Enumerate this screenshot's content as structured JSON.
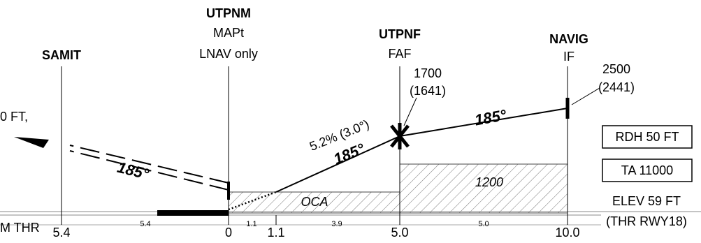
{
  "fixes": [
    {
      "name": "SAMIT",
      "distance": "5.4"
    },
    {
      "name": "UTPNM",
      "role": "MAPt",
      "note": "LNAV only",
      "distance": "0"
    },
    {
      "name": "UTPNF",
      "role": "FAF",
      "altitude": "1700",
      "height": "(1641)",
      "distance": "5.0"
    },
    {
      "name": "NAVIG",
      "role": "IF",
      "altitude": "2500",
      "height": "(2441)",
      "distance": "10.0"
    }
  ],
  "missed_text": "0 FT,",
  "glide": "5.2% (3.0°)",
  "tracks": [
    "185°",
    "185°",
    "185°"
  ],
  "oca": "OCA",
  "min_alt": "1200",
  "rdh": "RDH 50 FT",
  "ta": "TA 11000",
  "elev": "ELEV 59 FT",
  "thr": "(THR RWY18)",
  "thr_left": "M THR",
  "threshold_dist": "1.1",
  "segments": [
    "5.4",
    "1.1",
    "3.9",
    "5.0"
  ]
}
